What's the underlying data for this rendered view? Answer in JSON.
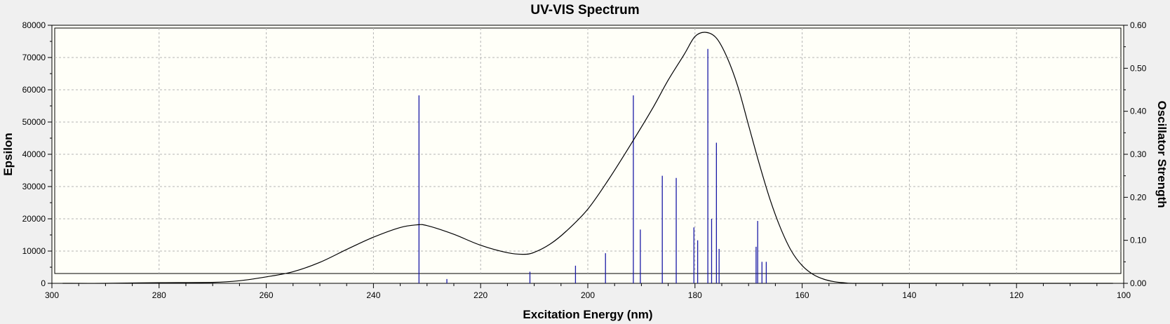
{
  "chart_data": {
    "type": "line",
    "title": "UV-VIS Spectrum",
    "xlabel": "Excitation Energy (nm)",
    "ylabel": "Epsilon",
    "y2label": "Oscillator Strength",
    "xlim": [
      300,
      100
    ],
    "ylim": [
      0,
      80000
    ],
    "y2lim": [
      0,
      0.6
    ],
    "x_ticks": [
      "300",
      "280",
      "260",
      "240",
      "220",
      "200",
      "180",
      "160",
      "140",
      "120",
      "100"
    ],
    "y_ticks": [
      "0",
      "10000",
      "20000",
      "30000",
      "40000",
      "50000",
      "60000",
      "70000",
      "80000"
    ],
    "y2_ticks": [
      "0.00",
      "0.10",
      "0.20",
      "0.30",
      "0.40",
      "0.50",
      "0.60"
    ],
    "grid": true,
    "colors": {
      "curve": "#000000",
      "sticks": "#1a1aa6",
      "plot_bg": "#fffff8",
      "grid": "#b4b4b4"
    },
    "series": [
      {
        "kind": "curve",
        "axis": "left",
        "x": [
          298,
          290,
          280,
          270,
          265,
          260,
          255,
          250,
          245,
          240,
          235,
          232,
          230,
          225,
          220,
          215,
          212,
          210,
          207,
          204,
          200,
          196,
          192,
          188,
          185,
          182,
          180,
          178,
          176,
          174,
          172,
          170,
          168,
          166,
          164,
          162,
          160,
          158,
          156,
          154,
          152,
          150,
          140,
          120,
          102
        ],
        "y": [
          0,
          0,
          200,
          300,
          800,
          2000,
          3600,
          6500,
          10500,
          14300,
          17300,
          18100,
          17900,
          15200,
          11800,
          9500,
          9000,
          9600,
          12200,
          16200,
          23000,
          32500,
          43000,
          54000,
          63000,
          71000,
          76500,
          77800,
          76000,
          70000,
          61000,
          49000,
          37000,
          26000,
          17000,
          10000,
          5500,
          2800,
          1300,
          500,
          150,
          0,
          0,
          0,
          0
        ]
      },
      {
        "kind": "sticks",
        "axis": "right",
        "x": [
          231.5,
          226.3,
          210.8,
          202.3,
          196.7,
          191.5,
          190.2,
          186.1,
          183.5,
          180.2,
          179.5,
          177.6,
          176.9,
          176.0,
          175.5,
          168.6,
          168.3,
          167.5,
          166.7
        ],
        "y": [
          0.437,
          0.01,
          0.027,
          0.041,
          0.07,
          0.437,
          0.125,
          0.25,
          0.245,
          0.13,
          0.1,
          0.545,
          0.15,
          0.327,
          0.08,
          0.085,
          0.145,
          0.05,
          0.05
        ]
      }
    ]
  }
}
